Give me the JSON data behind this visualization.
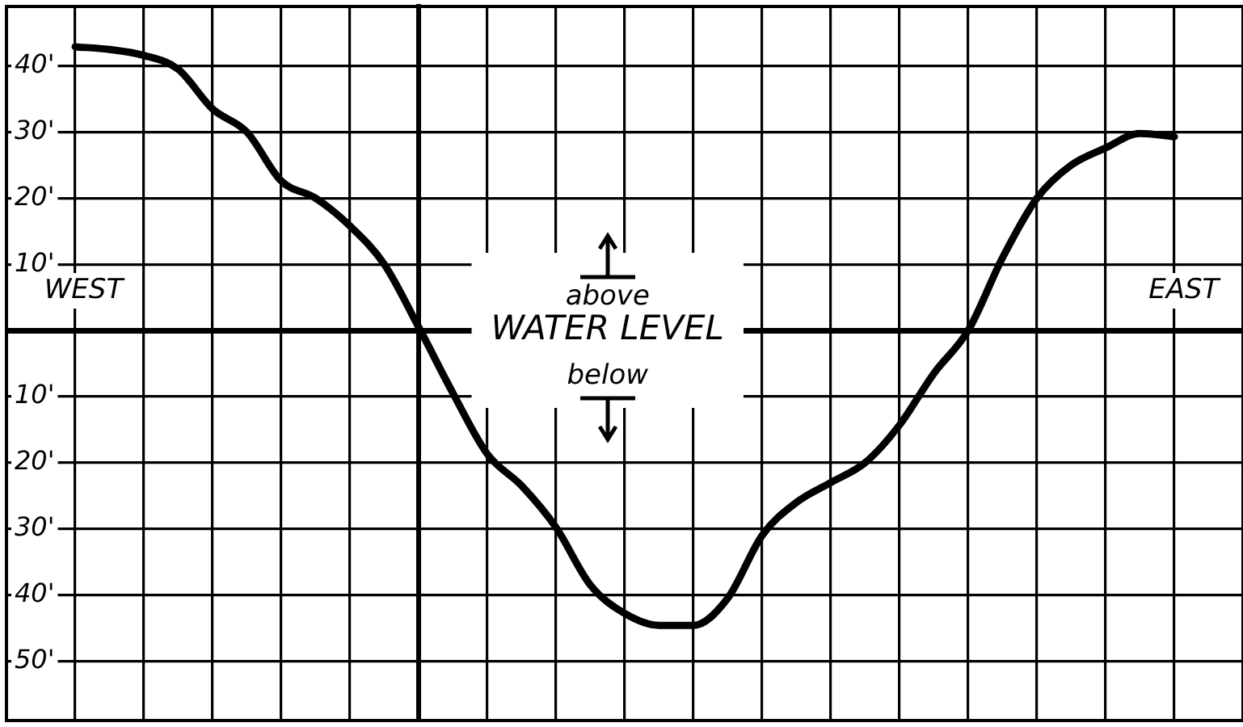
{
  "chart_data": {
    "type": "line",
    "categories": [
      null,
      null,
      null,
      null,
      null,
      null,
      null,
      null,
      null,
      null,
      null,
      null,
      null,
      null,
      null,
      null,
      null,
      null,
      null,
      null,
      null,
      null,
      null,
      null,
      null,
      null,
      null,
      null,
      null,
      null,
      null,
      null,
      null
    ],
    "series": [
      {
        "color": "#000000",
        "values": [
          42.9,
          42.5,
          41.6,
          39.5,
          33.5,
          30,
          22.6,
          20,
          15.8,
          10,
          0.5,
          -9.5,
          -18.7,
          -23.5,
          -29.8,
          -38.5,
          -42.8,
          -44.6,
          -44.6,
          -40.5,
          -31,
          -26,
          -23,
          -20,
          -14.3,
          -6.5,
          0,
          11,
          20,
          25,
          27.6,
          29.8,
          29.3
        ]
      }
    ],
    "ylim": [
      -59,
      49
    ],
    "yticks": [
      {
        "value": -50,
        "label": "50'"
      },
      {
        "value": -40,
        "label": "40'"
      },
      {
        "value": -30,
        "label": "30'"
      },
      {
        "value": -20,
        "label": "20'"
      },
      {
        "value": -10,
        "label": "10'"
      },
      {
        "value": 0,
        "label": null
      },
      {
        "value": 10,
        "label": "10'"
      },
      {
        "value": 20,
        "label": "20'"
      },
      {
        "value": 30,
        "label": "30'"
      },
      {
        "value": 40,
        "label": "40'"
      }
    ],
    "annotations": [
      "WEST",
      "EAST",
      "above",
      "WATER LEVEL",
      "below"
    ],
    "grid": true,
    "legend": false,
    "marker": "none",
    "line_style": "solid",
    "tick_labels": "y"
  }
}
